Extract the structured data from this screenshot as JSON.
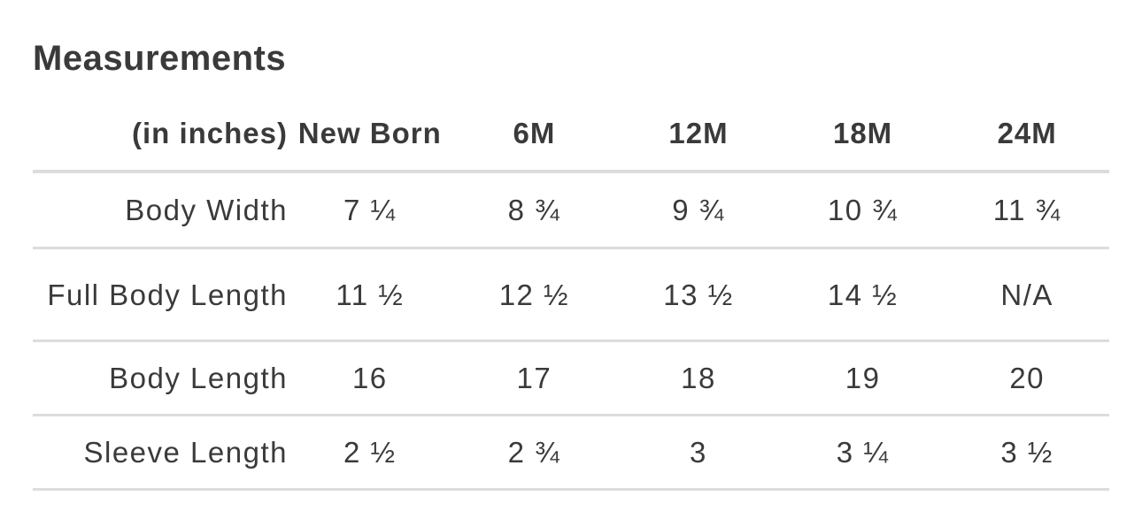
{
  "title": "Measurements",
  "table": {
    "header": [
      "(in inches)",
      "New Born",
      "6M",
      "12M",
      "18M",
      "24M"
    ],
    "rows": [
      {
        "label": "Body Width",
        "values": [
          "7 ¼",
          "8 ¾",
          "9 ¾",
          "10 ¾",
          "11 ¾"
        ]
      },
      {
        "label": "Full Body Length",
        "values": [
          "11 ½",
          "12 ½",
          "13 ½",
          "14 ½",
          "N/A"
        ]
      },
      {
        "label": "Body Length",
        "values": [
          "16",
          "17",
          "18",
          "19",
          "20"
        ]
      },
      {
        "label": "Sleeve Length",
        "values": [
          "2 ½",
          "2 ¾",
          "3",
          "3 ¼",
          "3 ½"
        ]
      }
    ]
  }
}
